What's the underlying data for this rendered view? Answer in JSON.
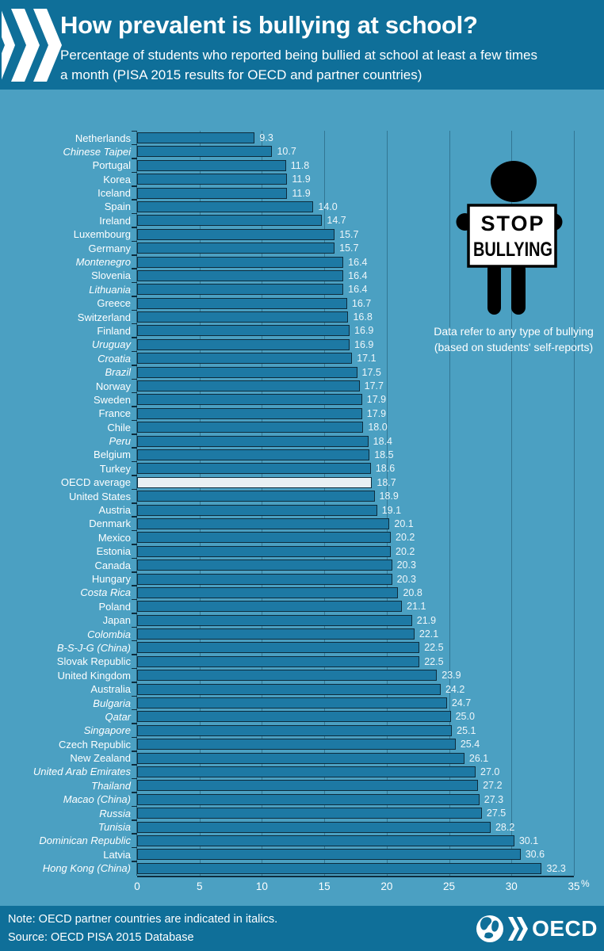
{
  "colors": {
    "background": "#4ba0c2",
    "band": "#0f6f99",
    "bar": "#1d79a4",
    "bar_border": "#0d2c3d",
    "highlight_bar": "#e9f0f3",
    "text": "#ffffff"
  },
  "sign": {
    "line1": "STOP",
    "line2": "BULLYING"
  },
  "footer": {
    "note": "Note: OECD partner countries are indicated in italics.",
    "source": "Source: OECD PISA 2015 Database",
    "logo_text": "OECD"
  },
  "chart_data": {
    "type": "bar",
    "orientation": "horizontal",
    "title": "How prevalent is bullying at school?",
    "subtitle": "Percentage of students who reported being bullied at school at least a few times a month (PISA 2015 results for OECD and partner countries)",
    "xlabel": "%",
    "xlim": [
      0,
      35
    ],
    "xticks": [
      0,
      5,
      10,
      15,
      20,
      25,
      30,
      35
    ],
    "grid": true,
    "annotation": {
      "line1": "Data refer to any type of bullying",
      "line2": "(based on students' self-reports)"
    },
    "highlight_note": "OECD average row is drawn in white",
    "rows": [
      {
        "label": "Netherlands",
        "value": 9.3,
        "italic": false,
        "highlight": false
      },
      {
        "label": "Chinese Taipei",
        "value": 10.7,
        "italic": true,
        "highlight": false
      },
      {
        "label": "Portugal",
        "value": 11.8,
        "italic": false,
        "highlight": false
      },
      {
        "label": "Korea",
        "value": 11.9,
        "italic": false,
        "highlight": false
      },
      {
        "label": "Iceland",
        "value": 11.9,
        "italic": false,
        "highlight": false
      },
      {
        "label": "Spain",
        "value": 14.0,
        "italic": false,
        "highlight": false
      },
      {
        "label": "Ireland",
        "value": 14.7,
        "italic": false,
        "highlight": false
      },
      {
        "label": "Luxembourg",
        "value": 15.7,
        "italic": false,
        "highlight": false
      },
      {
        "label": "Germany",
        "value": 15.7,
        "italic": false,
        "highlight": false
      },
      {
        "label": "Montenegro",
        "value": 16.4,
        "italic": true,
        "highlight": false
      },
      {
        "label": "Slovenia",
        "value": 16.4,
        "italic": false,
        "highlight": false
      },
      {
        "label": "Lithuania",
        "value": 16.4,
        "italic": true,
        "highlight": false
      },
      {
        "label": "Greece",
        "value": 16.7,
        "italic": false,
        "highlight": false
      },
      {
        "label": "Switzerland",
        "value": 16.8,
        "italic": false,
        "highlight": false
      },
      {
        "label": "Finland",
        "value": 16.9,
        "italic": false,
        "highlight": false
      },
      {
        "label": "Uruguay",
        "value": 16.9,
        "italic": true,
        "highlight": false
      },
      {
        "label": "Croatia",
        "value": 17.1,
        "italic": true,
        "highlight": false
      },
      {
        "label": "Brazil",
        "value": 17.5,
        "italic": true,
        "highlight": false
      },
      {
        "label": "Norway",
        "value": 17.7,
        "italic": false,
        "highlight": false
      },
      {
        "label": "Sweden",
        "value": 17.9,
        "italic": false,
        "highlight": false
      },
      {
        "label": "France",
        "value": 17.9,
        "italic": false,
        "highlight": false
      },
      {
        "label": "Chile",
        "value": 18.0,
        "italic": false,
        "highlight": false
      },
      {
        "label": "Peru",
        "value": 18.4,
        "italic": true,
        "highlight": false
      },
      {
        "label": "Belgium",
        "value": 18.5,
        "italic": false,
        "highlight": false
      },
      {
        "label": "Turkey",
        "value": 18.6,
        "italic": false,
        "highlight": false
      },
      {
        "label": "OECD average",
        "value": 18.7,
        "italic": false,
        "highlight": true
      },
      {
        "label": "United States",
        "value": 18.9,
        "italic": false,
        "highlight": false
      },
      {
        "label": "Austria",
        "value": 19.1,
        "italic": false,
        "highlight": false
      },
      {
        "label": "Denmark",
        "value": 20.1,
        "italic": false,
        "highlight": false
      },
      {
        "label": "Mexico",
        "value": 20.2,
        "italic": false,
        "highlight": false
      },
      {
        "label": "Estonia",
        "value": 20.2,
        "italic": false,
        "highlight": false
      },
      {
        "label": "Canada",
        "value": 20.3,
        "italic": false,
        "highlight": false
      },
      {
        "label": "Hungary",
        "value": 20.3,
        "italic": false,
        "highlight": false
      },
      {
        "label": "Costa Rica",
        "value": 20.8,
        "italic": true,
        "highlight": false
      },
      {
        "label": "Poland",
        "value": 21.1,
        "italic": false,
        "highlight": false
      },
      {
        "label": "Japan",
        "value": 21.9,
        "italic": false,
        "highlight": false
      },
      {
        "label": "Colombia",
        "value": 22.1,
        "italic": true,
        "highlight": false
      },
      {
        "label": "B-S-J-G (China)",
        "value": 22.5,
        "italic": true,
        "highlight": false
      },
      {
        "label": "Slovak Republic",
        "value": 22.5,
        "italic": false,
        "highlight": false
      },
      {
        "label": "United Kingdom",
        "value": 23.9,
        "italic": false,
        "highlight": false
      },
      {
        "label": "Australia",
        "value": 24.2,
        "italic": false,
        "highlight": false
      },
      {
        "label": "Bulgaria",
        "value": 24.7,
        "italic": true,
        "highlight": false
      },
      {
        "label": "Qatar",
        "value": 25.0,
        "italic": true,
        "highlight": false
      },
      {
        "label": "Singapore",
        "value": 25.1,
        "italic": true,
        "highlight": false
      },
      {
        "label": "Czech Republic",
        "value": 25.4,
        "italic": false,
        "highlight": false
      },
      {
        "label": "New Zealand",
        "value": 26.1,
        "italic": false,
        "highlight": false
      },
      {
        "label": "United Arab Emirates",
        "value": 27.0,
        "italic": true,
        "highlight": false
      },
      {
        "label": "Thailand",
        "value": 27.2,
        "italic": true,
        "highlight": false
      },
      {
        "label": "Macao (China)",
        "value": 27.3,
        "italic": true,
        "highlight": false
      },
      {
        "label": "Russia",
        "value": 27.5,
        "italic": true,
        "highlight": false
      },
      {
        "label": "Tunisia",
        "value": 28.2,
        "italic": true,
        "highlight": false
      },
      {
        "label": "Dominican Republic",
        "value": 30.1,
        "italic": true,
        "highlight": false
      },
      {
        "label": "Latvia",
        "value": 30.6,
        "italic": false,
        "highlight": false
      },
      {
        "label": "Hong Kong (China)",
        "value": 32.3,
        "italic": true,
        "highlight": false
      }
    ]
  }
}
